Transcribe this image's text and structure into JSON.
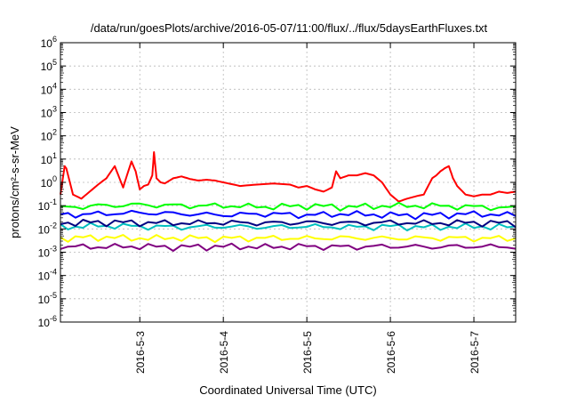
{
  "chart_data": {
    "type": "line",
    "title": "/data/run/goesPlots/archive/2016-05-07/11:00/flux/../flux/5daysEarthFluxes.txt",
    "xlabel": "Coordinated Universal Time (UTC)",
    "ylabel": "protons/cm²-s-sr-MeV",
    "yscale": "log",
    "ylim": [
      1e-06,
      1000000.0
    ],
    "xlim": [
      2.05,
      7.5
    ],
    "x_unit": "day of 2016-05",
    "x_ticks": [
      3,
      4,
      5,
      6,
      7
    ],
    "x_tick_labels": [
      "2016-5-3",
      "2016-5-4",
      "2016-5-5",
      "2016-5-6",
      "2016-5-7"
    ],
    "y_ticks": [
      {
        "base": "10",
        "exp": "-6"
      },
      {
        "base": "10",
        "exp": "-5"
      },
      {
        "base": "10",
        "exp": "-4"
      },
      {
        "base": "10",
        "exp": "-3"
      },
      {
        "base": "10",
        "exp": "-2"
      },
      {
        "base": "10",
        "exp": "-1"
      },
      {
        "base": "10",
        "exp": "0"
      },
      {
        "base": "10",
        "exp": "1"
      },
      {
        "base": "10",
        "exp": "2"
      },
      {
        "base": "10",
        "exp": "3"
      },
      {
        "base": "10",
        "exp": "4"
      },
      {
        "base": "10",
        "exp": "5"
      },
      {
        "base": "10",
        "exp": "6"
      }
    ],
    "grid": true,
    "legend": "none",
    "series": [
      {
        "color": "#ff0000",
        "x": [
          2.05,
          2.1,
          2.12,
          2.2,
          2.3,
          2.4,
          2.5,
          2.6,
          2.7,
          2.8,
          2.9,
          2.95,
          3.0,
          3.05,
          3.1,
          3.15,
          3.17,
          3.2,
          3.25,
          3.3,
          3.4,
          3.5,
          3.6,
          3.7,
          3.8,
          3.9,
          4.0,
          4.2,
          4.4,
          4.6,
          4.8,
          4.9,
          5.0,
          5.1,
          5.2,
          5.3,
          5.35,
          5.4,
          5.5,
          5.6,
          5.7,
          5.8,
          5.9,
          6.0,
          6.1,
          6.2,
          6.3,
          6.4,
          6.5,
          6.55,
          6.6,
          6.65,
          6.7,
          6.75,
          6.8,
          6.9,
          7.0,
          7.1,
          7.2,
          7.3,
          7.4,
          7.5
        ],
        "y": [
          0.3,
          5,
          4,
          0.3,
          0.2,
          0.4,
          0.8,
          1.5,
          5,
          0.6,
          8,
          3,
          0.5,
          0.7,
          0.8,
          2,
          20,
          1.5,
          1,
          0.9,
          1.5,
          1.8,
          1.4,
          1.2,
          1.3,
          1.2,
          1.0,
          0.7,
          0.8,
          0.9,
          0.8,
          0.6,
          0.7,
          0.5,
          0.4,
          0.6,
          3,
          1.5,
          2,
          2,
          2.5,
          2,
          1.0,
          0.3,
          0.15,
          0.2,
          0.25,
          0.3,
          1.5,
          2,
          3,
          4,
          5,
          1.5,
          0.7,
          0.3,
          0.25,
          0.3,
          0.3,
          0.4,
          0.35,
          0.4
        ]
      },
      {
        "color": "#00ff00",
        "x": [
          2.05,
          2.5,
          3.0,
          3.5,
          4.0,
          4.5,
          5.0,
          5.5,
          6.0,
          6.5,
          7.0,
          7.5
        ],
        "y": [
          0.08,
          0.1,
          0.11,
          0.1,
          0.1,
          0.09,
          0.1,
          0.09,
          0.1,
          0.1,
          0.09,
          0.08
        ]
      },
      {
        "color": "#0000ff",
        "x": [
          2.05,
          2.5,
          3.0,
          3.5,
          4.0,
          4.5,
          5.0,
          5.5,
          6.0,
          6.5,
          7.0,
          7.5
        ],
        "y": [
          0.04,
          0.045,
          0.05,
          0.045,
          0.04,
          0.045,
          0.04,
          0.045,
          0.04,
          0.04,
          0.045,
          0.04
        ]
      },
      {
        "color": "#00bfbf",
        "x": [
          2.05,
          2.5,
          3.0,
          3.5,
          4.0,
          4.5,
          5.0,
          5.5,
          6.0,
          6.5,
          7.0,
          7.5
        ],
        "y": [
          0.012,
          0.014,
          0.013,
          0.012,
          0.013,
          0.012,
          0.013,
          0.012,
          0.013,
          0.012,
          0.013,
          0.012
        ]
      },
      {
        "color": "#000080",
        "x": [
          2.05,
          2.5,
          3.0,
          3.5,
          4.0,
          4.5,
          5.0,
          5.5,
          6.0,
          6.5,
          7.0,
          7.5
        ],
        "y": [
          0.018,
          0.02,
          0.019,
          0.018,
          0.019,
          0.018,
          0.019,
          0.018,
          0.019,
          0.018,
          0.019,
          0.018
        ]
      },
      {
        "color": "#ffff00",
        "x": [
          2.05,
          2.5,
          3.0,
          3.5,
          4.0,
          4.5,
          5.0,
          5.5,
          6.0,
          6.5,
          7.0,
          7.5
        ],
        "y": [
          0.004,
          0.0045,
          0.004,
          0.0042,
          0.004,
          0.0041,
          0.004,
          0.0042,
          0.004,
          0.0041,
          0.004,
          0.004
        ]
      },
      {
        "color": "#800080",
        "x": [
          2.05,
          2.5,
          3.0,
          3.5,
          4.0,
          4.5,
          5.0,
          5.5,
          6.0,
          6.5,
          7.0,
          7.5
        ],
        "y": [
          0.0018,
          0.0017,
          0.0018,
          0.0017,
          0.0018,
          0.0017,
          0.0018,
          0.0017,
          0.0018,
          0.0017,
          0.0018,
          0.0017
        ]
      }
    ]
  }
}
